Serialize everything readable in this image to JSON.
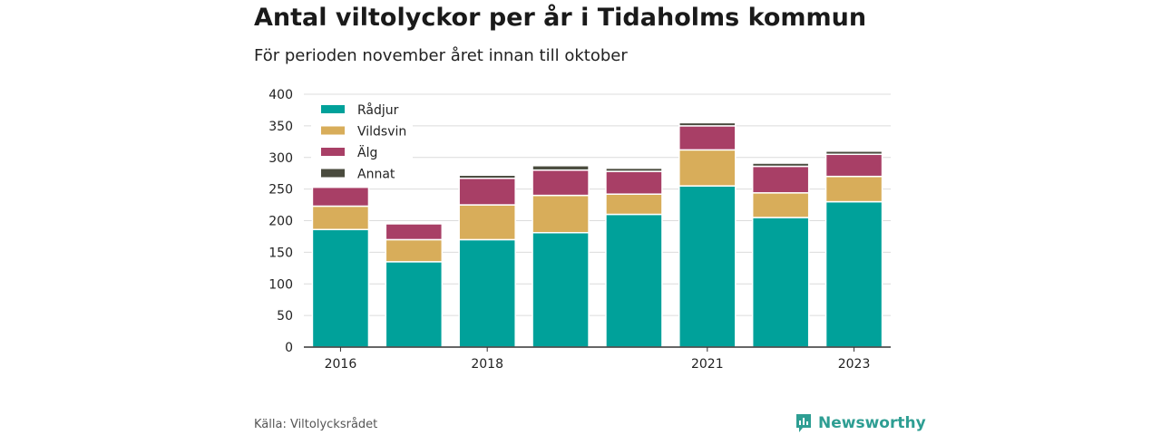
{
  "chart_data": {
    "type": "bar",
    "stacked": true,
    "title": "Antal viltolyckor per år i Tidaholms kommun",
    "subtitle": "För perioden november året innan till oktober",
    "categories": [
      "2016",
      "2017",
      "2018",
      "2019",
      "2020",
      "2021",
      "2022",
      "2023"
    ],
    "x_tick_labels": [
      "2016",
      "",
      "2018",
      "",
      "",
      "2021",
      "",
      "2023"
    ],
    "series": [
      {
        "name": "Rådjur",
        "color": "#00a19a",
        "values": [
          186,
          135,
          170,
          181,
          210,
          255,
          205,
          230
        ]
      },
      {
        "name": "Vildsvin",
        "color": "#d8ad5a",
        "values": [
          37,
          35,
          55,
          59,
          32,
          57,
          39,
          40
        ]
      },
      {
        "name": "Älg",
        "color": "#a83f66",
        "values": [
          30,
          25,
          42,
          40,
          36,
          38,
          42,
          35
        ]
      },
      {
        "name": "Annat",
        "color": "#4a4b3e",
        "values": [
          2,
          0,
          5,
          7,
          5,
          5,
          5,
          5
        ]
      }
    ],
    "ylim": [
      0,
      400
    ],
    "yticks": [
      0,
      50,
      100,
      150,
      200,
      250,
      300,
      350,
      400
    ],
    "grid": true,
    "legend": "top-left",
    "xlabel": "",
    "ylabel": ""
  },
  "footer": {
    "source": "Källa: Viltolycksrådet",
    "brand": "Newsworthy",
    "brand_icon": "newsworthy-logo-icon",
    "brand_color": "#2e9e93"
  }
}
